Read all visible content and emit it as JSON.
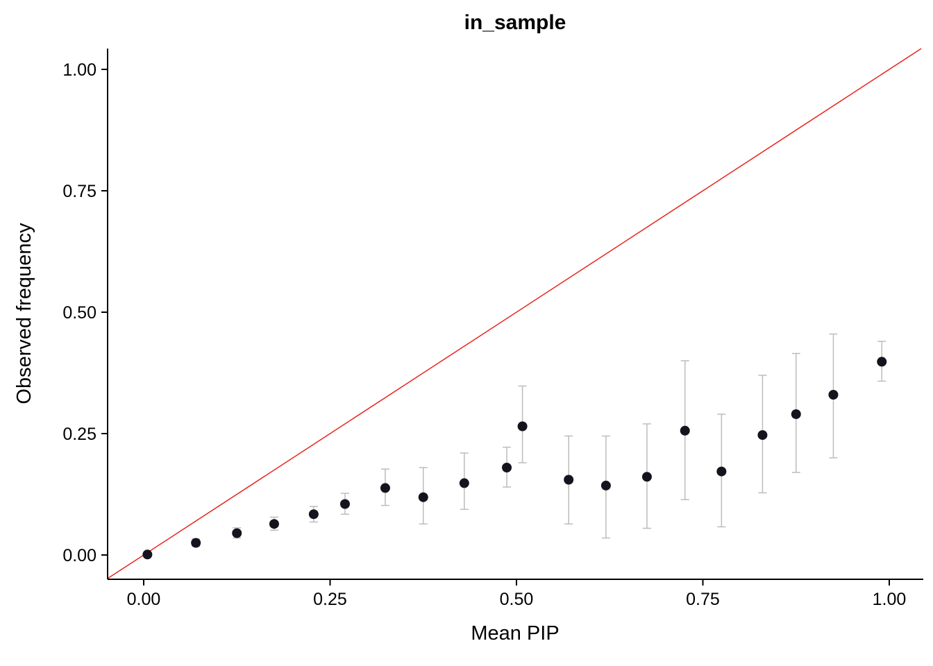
{
  "chart_data": {
    "type": "scatter",
    "title": "in_sample",
    "xlabel": "Mean PIP",
    "ylabel": "Observed frequency",
    "xlim": [
      -0.05,
      1.05
    ],
    "ylim": [
      -0.05,
      1.05
    ],
    "grid": false,
    "legend": "none",
    "x_ticks": [
      0.0,
      0.25,
      0.5,
      0.75,
      1.0
    ],
    "y_ticks": [
      0.0,
      0.25,
      0.5,
      0.75,
      1.0
    ],
    "tick_format": "0.00",
    "identity_line": {
      "type": "y = x reference line",
      "color": "#e8251f",
      "width": 1.5
    },
    "style": {
      "point_color": "#14141e",
      "point_radius": 7,
      "error_bar_color": "#bcbcbc",
      "error_bar_width": 1.5,
      "error_cap_half_width": 6,
      "axis_color": "#000000",
      "axis_width": 2
    },
    "series": [
      {
        "name": "in_sample",
        "points": [
          {
            "x": 0.005,
            "y": 0.001,
            "lo": 0.0,
            "hi": 0.005
          },
          {
            "x": 0.07,
            "y": 0.025,
            "lo": 0.018,
            "hi": 0.033
          },
          {
            "x": 0.125,
            "y": 0.045,
            "lo": 0.035,
            "hi": 0.056
          },
          {
            "x": 0.175,
            "y": 0.064,
            "lo": 0.051,
            "hi": 0.078
          },
          {
            "x": 0.228,
            "y": 0.084,
            "lo": 0.068,
            "hi": 0.1
          },
          {
            "x": 0.27,
            "y": 0.105,
            "lo": 0.084,
            "hi": 0.127
          },
          {
            "x": 0.324,
            "y": 0.138,
            "lo": 0.102,
            "hi": 0.177
          },
          {
            "x": 0.375,
            "y": 0.119,
            "lo": 0.064,
            "hi": 0.18
          },
          {
            "x": 0.43,
            "y": 0.148,
            "lo": 0.094,
            "hi": 0.21
          },
          {
            "x": 0.487,
            "y": 0.18,
            "lo": 0.14,
            "hi": 0.222
          },
          {
            "x": 0.508,
            "y": 0.265,
            "lo": 0.19,
            "hi": 0.348
          },
          {
            "x": 0.57,
            "y": 0.155,
            "lo": 0.064,
            "hi": 0.245
          },
          {
            "x": 0.62,
            "y": 0.143,
            "lo": 0.035,
            "hi": 0.245
          },
          {
            "x": 0.675,
            "y": 0.161,
            "lo": 0.055,
            "hi": 0.27
          },
          {
            "x": 0.726,
            "y": 0.256,
            "lo": 0.114,
            "hi": 0.4
          },
          {
            "x": 0.775,
            "y": 0.172,
            "lo": 0.058,
            "hi": 0.29
          },
          {
            "x": 0.83,
            "y": 0.247,
            "lo": 0.128,
            "hi": 0.37
          },
          {
            "x": 0.875,
            "y": 0.29,
            "lo": 0.17,
            "hi": 0.415
          },
          {
            "x": 0.925,
            "y": 0.33,
            "lo": 0.2,
            "hi": 0.455
          },
          {
            "x": 0.99,
            "y": 0.398,
            "lo": 0.358,
            "hi": 0.44
          }
        ]
      }
    ]
  }
}
